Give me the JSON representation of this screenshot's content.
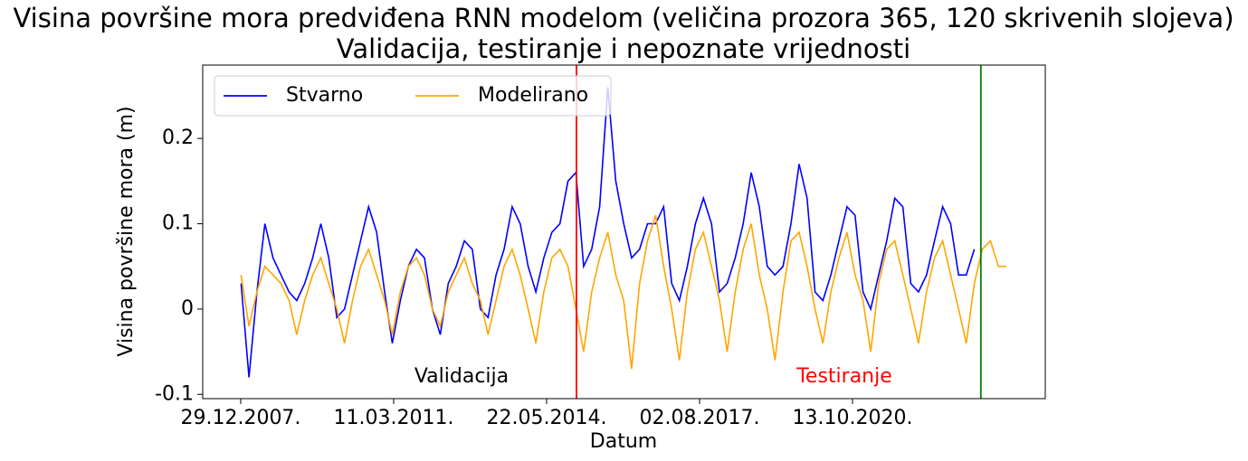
{
  "chart_data": {
    "type": "line",
    "title": "Visina površine mora predviđena RNN modelom (veličina prozora 365, 120 skrivenih slojeva)",
    "subtitle": "Validacija, testiranje i nepoznate vrijednosti",
    "x_label": "Datum",
    "y_label": "Visina površine mora (m)",
    "legend": "upper left",
    "xlim": [
      "14.03.2007.",
      "24.10.2024."
    ],
    "xticks": [
      "29.12.2007.",
      "11.03.2011.",
      "22.05.2014.",
      "02.08.2017.",
      "13.10.2020."
    ],
    "ylim": [
      -0.105,
      0.286
    ],
    "yticks": [
      -0.1,
      0.0,
      0.1,
      0.2
    ],
    "vlines": [
      {
        "x": "05.01.2015.",
        "color": "red"
      },
      {
        "x": "20.06.2023.",
        "color": "green"
      }
    ],
    "annotations": [
      {
        "text": "Validacija",
        "color": "black"
      },
      {
        "text": "Testiranje",
        "color": "red"
      }
    ],
    "x": [
      "01.01.2008.",
      "01.03.2008.",
      "01.05.2008.",
      "01.07.2008.",
      "01.09.2008.",
      "01.11.2008.",
      "01.01.2009.",
      "01.03.2009.",
      "01.05.2009.",
      "01.07.2009.",
      "01.09.2009.",
      "01.11.2009.",
      "01.01.2010.",
      "01.03.2010.",
      "01.05.2010.",
      "01.07.2010.",
      "01.09.2010.",
      "01.11.2010.",
      "01.01.2011.",
      "01.03.2011.",
      "01.05.2011.",
      "01.07.2011.",
      "01.09.2011.",
      "01.11.2011.",
      "01.01.2012.",
      "01.03.2012.",
      "01.05.2012.",
      "01.07.2012.",
      "01.09.2012.",
      "01.11.2012.",
      "01.01.2013.",
      "01.03.2013.",
      "01.05.2013.",
      "01.07.2013.",
      "01.09.2013.",
      "01.11.2013.",
      "01.01.2014.",
      "01.03.2014.",
      "01.05.2014.",
      "01.07.2014.",
      "01.09.2014.",
      "01.11.2014.",
      "01.01.2015.",
      "01.03.2015.",
      "01.05.2015.",
      "01.07.2015.",
      "01.09.2015.",
      "01.11.2015.",
      "01.01.2016.",
      "01.03.2016.",
      "01.05.2016.",
      "01.07.2016.",
      "01.09.2016.",
      "01.11.2016.",
      "01.01.2017.",
      "01.03.2017.",
      "01.05.2017.",
      "01.07.2017.",
      "01.09.2017.",
      "01.11.2017.",
      "01.01.2018.",
      "01.03.2018.",
      "01.05.2018.",
      "01.07.2018.",
      "01.09.2018.",
      "01.11.2018.",
      "01.01.2019.",
      "01.03.2019.",
      "01.05.2019.",
      "01.07.2019.",
      "01.09.2019.",
      "01.11.2019.",
      "01.01.2020.",
      "01.03.2020.",
      "01.05.2020.",
      "01.07.2020.",
      "01.09.2020.",
      "01.11.2020.",
      "01.01.2021.",
      "01.03.2021.",
      "01.05.2021.",
      "01.07.2021.",
      "01.09.2021.",
      "01.11.2021.",
      "01.01.2022.",
      "01.03.2022.",
      "01.05.2022.",
      "01.07.2022.",
      "01.09.2022.",
      "01.11.2022.",
      "01.01.2023.",
      "01.03.2023.",
      "01.05.2023.",
      "01.07.2023.",
      "01.09.2023.",
      "01.11.2023.",
      "01.01.2024."
    ],
    "series": [
      {
        "name": "Stvarno",
        "color": "blue",
        "values": [
          0.03,
          -0.08,
          0.02,
          0.1,
          0.06,
          0.04,
          0.02,
          0.01,
          0.03,
          0.06,
          0.1,
          0.06,
          -0.01,
          0.0,
          0.04,
          0.08,
          0.12,
          0.09,
          0.02,
          -0.04,
          0.01,
          0.05,
          0.07,
          0.06,
          0.0,
          -0.03,
          0.03,
          0.05,
          0.08,
          0.07,
          0.0,
          -0.01,
          0.04,
          0.07,
          0.12,
          0.1,
          0.05,
          0.02,
          0.06,
          0.09,
          0.1,
          0.15,
          0.16,
          0.05,
          0.07,
          0.12,
          0.26,
          0.15,
          0.1,
          0.06,
          0.07,
          0.1,
          0.1,
          0.12,
          0.03,
          0.01,
          0.05,
          0.1,
          0.13,
          0.1,
          0.02,
          0.03,
          0.06,
          0.1,
          0.16,
          0.12,
          0.05,
          0.04,
          0.05,
          0.1,
          0.17,
          0.13,
          0.02,
          0.01,
          0.04,
          0.08,
          0.12,
          0.11,
          0.02,
          0.0,
          0.04,
          0.08,
          0.13,
          0.12,
          0.03,
          0.02,
          0.04,
          0.08,
          0.12,
          0.1,
          0.04,
          0.04,
          0.07,
          null,
          null,
          null,
          null
        ]
      },
      {
        "name": "Modelirano",
        "color": "orange",
        "values": [
          0.04,
          -0.02,
          0.02,
          0.05,
          0.04,
          0.03,
          0.01,
          -0.03,
          0.01,
          0.04,
          0.06,
          0.03,
          0.0,
          -0.04,
          0.01,
          0.05,
          0.07,
          0.04,
          0.01,
          -0.03,
          0.02,
          0.05,
          0.06,
          0.04,
          0.0,
          -0.02,
          0.02,
          0.04,
          0.06,
          0.03,
          0.01,
          -0.03,
          0.01,
          0.05,
          0.07,
          0.04,
          0.0,
          -0.04,
          0.02,
          0.06,
          0.07,
          0.05,
          0.0,
          -0.05,
          0.02,
          0.06,
          0.09,
          0.04,
          0.01,
          -0.07,
          0.03,
          0.08,
          0.11,
          0.05,
          0.0,
          -0.06,
          0.02,
          0.07,
          0.09,
          0.05,
          0.01,
          -0.05,
          0.02,
          0.07,
          0.1,
          0.04,
          0.0,
          -0.06,
          0.02,
          0.08,
          0.09,
          0.05,
          0.0,
          -0.04,
          0.02,
          0.06,
          0.09,
          0.04,
          0.01,
          -0.05,
          0.03,
          0.07,
          0.08,
          0.04,
          0.0,
          -0.04,
          0.02,
          0.06,
          0.08,
          0.04,
          0.0,
          -0.04,
          0.03,
          0.07,
          0.08,
          0.05,
          0.05
        ]
      }
    ]
  }
}
